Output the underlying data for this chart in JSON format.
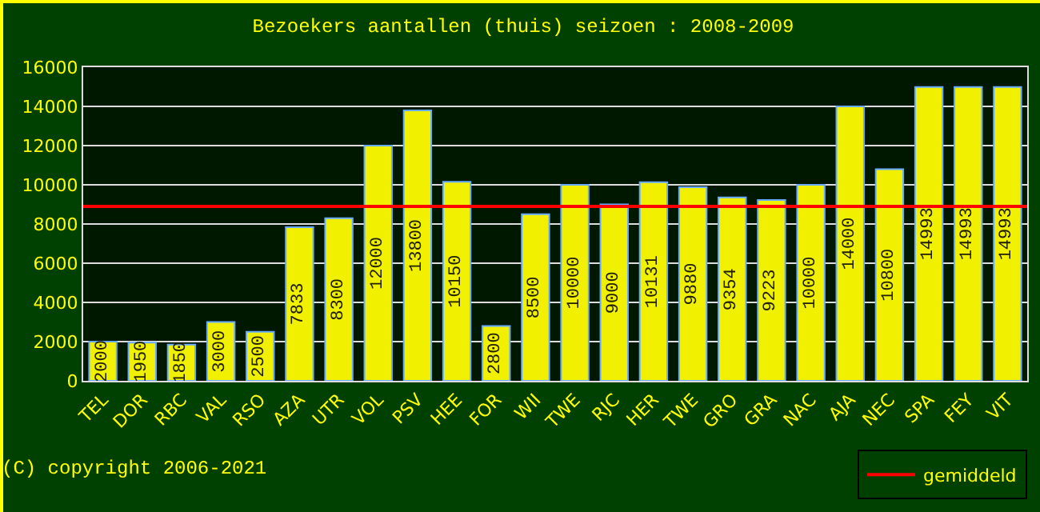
{
  "chart_data": {
    "type": "bar",
    "title": "Bezoekers aantallen (thuis) seizoen : 2008-2009",
    "categories": [
      "TEL",
      "DOR",
      "RBC",
      "VAL",
      "RSO",
      "AZA",
      "UTR",
      "VOL",
      "PSV",
      "HEE",
      "FOR",
      "WII",
      "TWE",
      "RJC",
      "HER",
      "TWE",
      "GRO",
      "GRA",
      "NAC",
      "AJA",
      "NEC",
      "SPA",
      "FEY",
      "VIT"
    ],
    "values": [
      2000,
      1950,
      1850,
      3000,
      2500,
      7833,
      8300,
      12000,
      13800,
      10150,
      2800,
      8500,
      10000,
      9000,
      10131,
      9880,
      9354,
      9223,
      10000,
      14000,
      10800,
      14993,
      14993,
      14993
    ],
    "color": "#f0f000",
    "data_labels": true,
    "ylim": [
      0,
      16000
    ],
    "yticks": [
      0,
      2000,
      4000,
      6000,
      8000,
      10000,
      12000,
      14000,
      16000
    ],
    "grid": "y",
    "ref_lines": [
      {
        "axis": "y",
        "value": 8900,
        "label": "gemiddeld",
        "color": "#ff0000"
      }
    ],
    "legend": "bottom right",
    "annotations": [
      "(C) copyright 2006-2021"
    ]
  }
}
